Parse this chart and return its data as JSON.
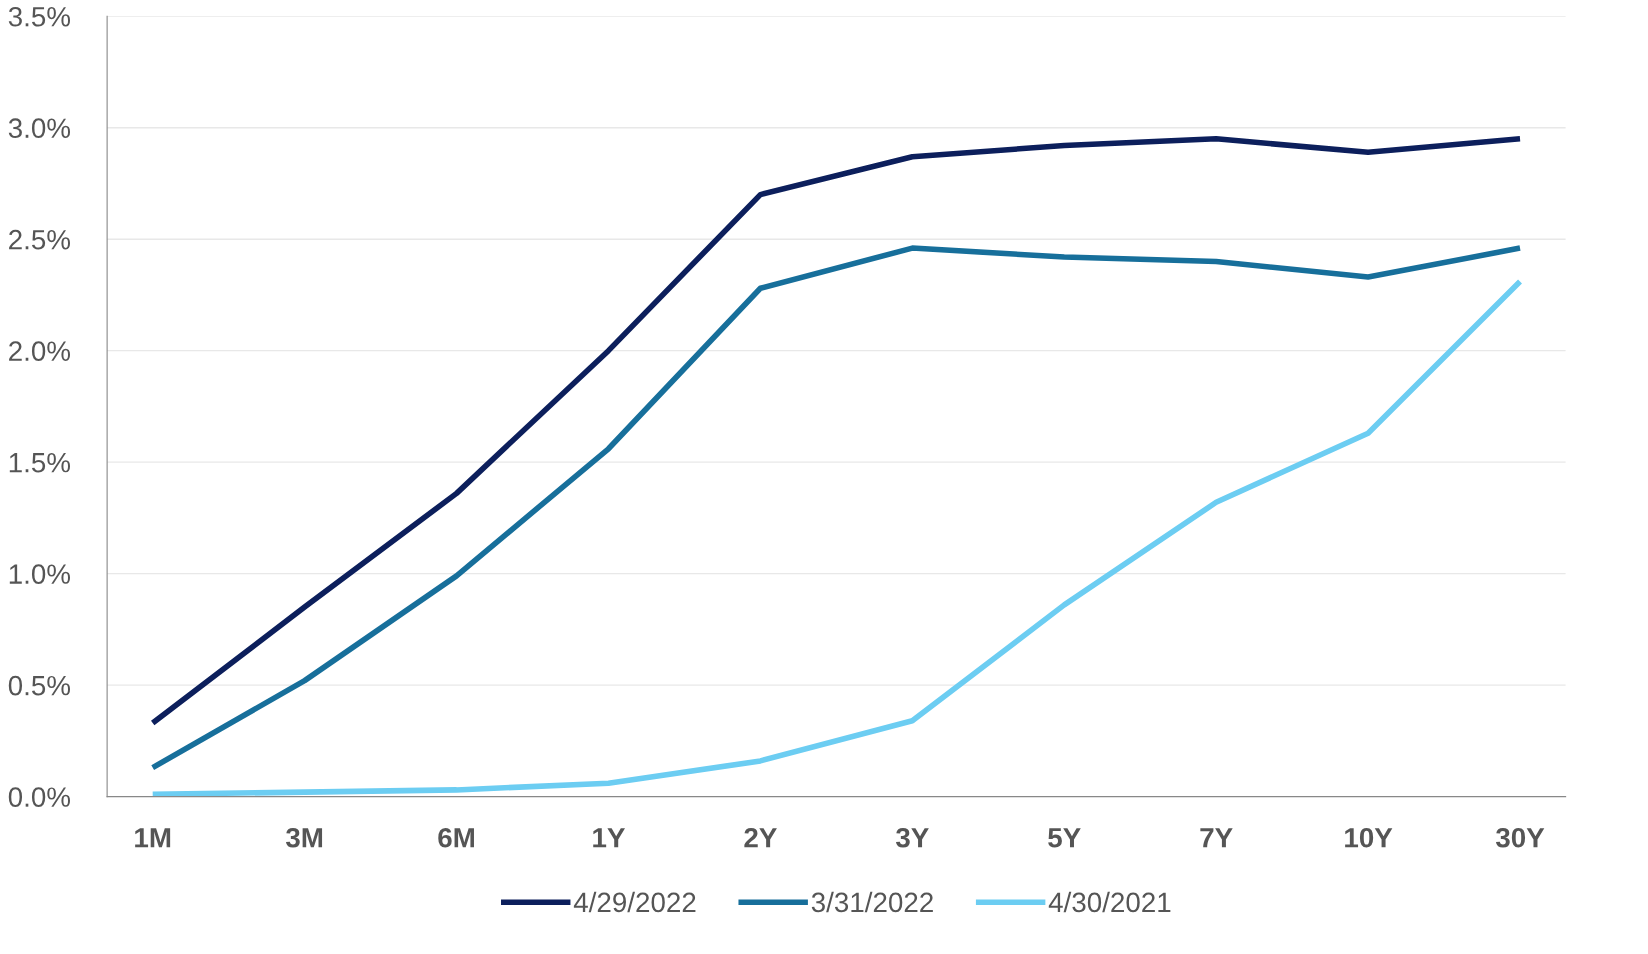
{
  "chart_data": {
    "type": "line",
    "categories": [
      "1M",
      "3M",
      "6M",
      "1Y",
      "2Y",
      "3Y",
      "5Y",
      "7Y",
      "10Y",
      "30Y"
    ],
    "ylim": [
      0,
      3.5
    ],
    "yticks": [
      {
        "value": 0,
        "label": "0.0%"
      },
      {
        "value": 0.5,
        "label": "0.5%"
      },
      {
        "value": 1,
        "label": "1.0%"
      },
      {
        "value": 1.5,
        "label": "1.5%"
      },
      {
        "value": 2,
        "label": "2.0%"
      },
      {
        "value": 2.5,
        "label": "2.5%"
      },
      {
        "value": 3,
        "label": "3.0%"
      },
      {
        "value": 3.5,
        "label": "3.5%"
      }
    ],
    "grid": "y",
    "legend": "bottom",
    "marker": "none",
    "line_style": "solid",
    "series": [
      {
        "name": "4/29/2022",
        "color": "#0c1f5c",
        "values": [
          0.33,
          0.85,
          1.36,
          2.0,
          2.7,
          2.87,
          2.92,
          2.95,
          2.89,
          2.95
        ]
      },
      {
        "name": "3/31/2022",
        "color": "#176f9b",
        "values": [
          0.13,
          0.52,
          0.99,
          1.56,
          2.28,
          2.46,
          2.42,
          2.4,
          2.33,
          2.46
        ]
      },
      {
        "name": "4/30/2021",
        "color": "#6ccdf2",
        "values": [
          0.01,
          0.02,
          0.03,
          0.06,
          0.16,
          0.34,
          0.86,
          1.32,
          1.63,
          2.31
        ]
      }
    ]
  }
}
